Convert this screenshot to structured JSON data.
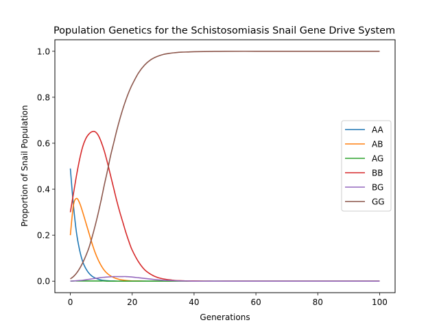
{
  "chart_data": {
    "type": "line",
    "title": "Population Genetics for the Schistosomiasis Snail Gene Drive System",
    "xlabel": "Generations",
    "ylabel": "Proportion of Snail Population",
    "xlim": [
      -5,
      105
    ],
    "ylim": [
      -0.05,
      1.05
    ],
    "xticks": [
      0,
      20,
      40,
      60,
      80,
      100
    ],
    "xtick_labels": [
      "0",
      "20",
      "40",
      "60",
      "80",
      "100"
    ],
    "yticks": [
      0.0,
      0.2,
      0.4,
      0.6,
      0.8,
      1.0
    ],
    "ytick_labels": [
      "0.0",
      "0.2",
      "0.4",
      "0.6",
      "0.8",
      "1.0"
    ],
    "grid": false,
    "legend_position": "center-right",
    "x": [
      0,
      1,
      2,
      3,
      4,
      5,
      6,
      7,
      8,
      9,
      10,
      11,
      12,
      13,
      14,
      15,
      16,
      17,
      18,
      19,
      20,
      22,
      24,
      26,
      28,
      30,
      32,
      34,
      36,
      38,
      40,
      45,
      50,
      60,
      70,
      80,
      90,
      100
    ],
    "series": [
      {
        "name": "AA",
        "color": "#1f77b4",
        "values": [
          0.49,
          0.33,
          0.21,
          0.135,
          0.085,
          0.055,
          0.035,
          0.022,
          0.014,
          0.009,
          0.005,
          0.003,
          0.002,
          0.001,
          0.001,
          0,
          0,
          0,
          0,
          0,
          0,
          0,
          0,
          0,
          0,
          0,
          0,
          0,
          0,
          0,
          0,
          0,
          0,
          0,
          0,
          0,
          0,
          0
        ]
      },
      {
        "name": "AB",
        "color": "#ff7f0e",
        "values": [
          0.2,
          0.33,
          0.36,
          0.34,
          0.3,
          0.255,
          0.21,
          0.165,
          0.125,
          0.093,
          0.067,
          0.047,
          0.033,
          0.023,
          0.016,
          0.011,
          0.007,
          0.005,
          0.003,
          0.002,
          0.001,
          0.001,
          0,
          0,
          0,
          0,
          0,
          0,
          0,
          0,
          0,
          0,
          0,
          0,
          0,
          0,
          0,
          0
        ]
      },
      {
        "name": "AG",
        "color": "#2ca02c",
        "values": [
          0,
          0.001,
          0.001,
          0.001,
          0.001,
          0.001,
          0.001,
          0.001,
          0.001,
          0.001,
          0.001,
          0.001,
          0,
          0,
          0,
          0,
          0,
          0,
          0,
          0,
          0,
          0,
          0,
          0,
          0,
          0,
          0,
          0,
          0,
          0,
          0,
          0,
          0,
          0,
          0,
          0,
          0,
          0
        ]
      },
      {
        "name": "BB",
        "color": "#d62728",
        "values": [
          0.3,
          0.38,
          0.46,
          0.53,
          0.585,
          0.62,
          0.64,
          0.65,
          0.65,
          0.635,
          0.605,
          0.565,
          0.515,
          0.46,
          0.405,
          0.35,
          0.3,
          0.255,
          0.21,
          0.17,
          0.135,
          0.085,
          0.05,
          0.03,
          0.017,
          0.01,
          0.006,
          0.003,
          0.002,
          0.001,
          0.001,
          0,
          0,
          0,
          0,
          0,
          0,
          0
        ]
      },
      {
        "name": "BG",
        "color": "#9467bd",
        "values": [
          0,
          0.001,
          0.002,
          0.003,
          0.004,
          0.006,
          0.008,
          0.01,
          0.012,
          0.014,
          0.016,
          0.017,
          0.018,
          0.019,
          0.02,
          0.02,
          0.02,
          0.02,
          0.02,
          0.019,
          0.018,
          0.015,
          0.012,
          0.009,
          0.006,
          0.004,
          0.003,
          0.002,
          0.001,
          0.001,
          0,
          0,
          0,
          0,
          0,
          0,
          0,
          0
        ]
      },
      {
        "name": "GG",
        "color": "#8c564b",
        "values": [
          0.01,
          0.02,
          0.035,
          0.055,
          0.08,
          0.11,
          0.145,
          0.19,
          0.24,
          0.295,
          0.355,
          0.42,
          0.48,
          0.545,
          0.6,
          0.655,
          0.705,
          0.75,
          0.79,
          0.825,
          0.855,
          0.905,
          0.94,
          0.963,
          0.977,
          0.986,
          0.991,
          0.994,
          0.996,
          0.997,
          0.998,
          0.999,
          1.0,
          1.0,
          1.0,
          1.0,
          1.0,
          1.0
        ]
      }
    ]
  }
}
